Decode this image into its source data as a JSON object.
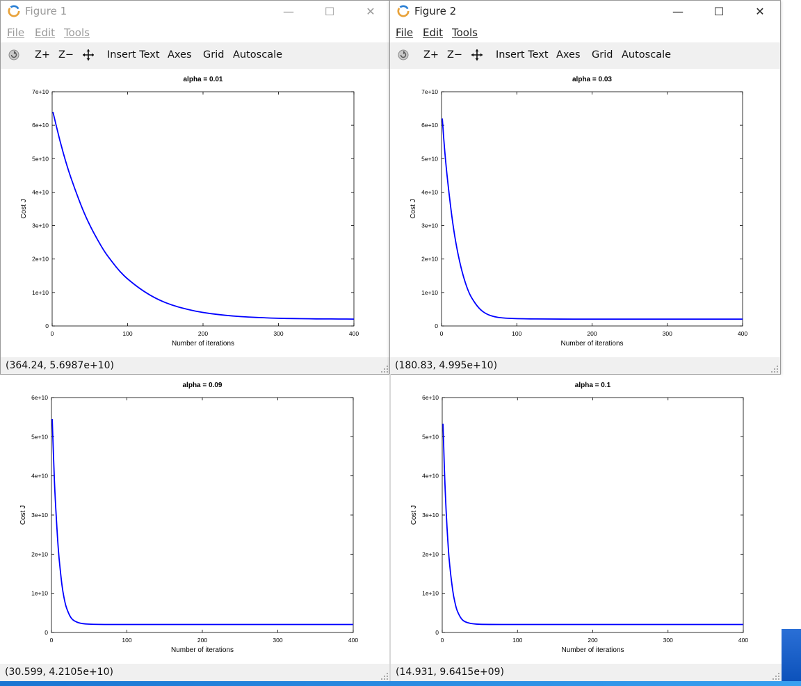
{
  "windows": [
    {
      "title": "Figure 1",
      "title_active": false
    },
    {
      "title": "Figure 2",
      "title_active": true
    }
  ],
  "window_controls": {
    "minimize": "—",
    "maximize": "☐",
    "close": "✕"
  },
  "menu": {
    "file": "File",
    "edit": "Edit",
    "tools": "Tools"
  },
  "toolbar": {
    "zoom_in": "Z+",
    "zoom_out": "Z−",
    "insert_text": "Insert Text",
    "axes": "Axes",
    "grid": "Grid",
    "autoscale": "Autoscale"
  },
  "colors": {
    "line": "#0000ff",
    "toolbar_bg": "#f0f0f0"
  },
  "status": [
    "(364.24, 5.6987e+10)",
    "(180.83, 4.995e+10)",
    "(30.599, 4.2105e+10)",
    "(14.931, 9.6415e+09)"
  ],
  "chart_data": [
    {
      "type": "line",
      "title": "alpha = 0.01",
      "xlabel": "Number of iterations",
      "ylabel": "Cost J",
      "xlim": [
        0,
        400
      ],
      "ylim": [
        0,
        70000000000
      ],
      "x_ticks": [
        0,
        100,
        200,
        300,
        400
      ],
      "y_ticks": [
        0,
        10000000000,
        20000000000,
        30000000000,
        40000000000,
        50000000000,
        60000000000,
        70000000000
      ],
      "y_tick_labels": [
        "0",
        "1e+10",
        "2e+10",
        "3e+10",
        "4e+10",
        "5e+10",
        "6e+10",
        "7e+10"
      ],
      "series": [
        {
          "x": [
            1,
            10,
            20,
            30,
            40,
            50,
            60,
            70,
            80,
            90,
            100,
            120,
            140,
            160,
            180,
            200,
            220,
            240,
            260,
            280,
            300,
            320,
            340,
            360,
            380,
            400
          ],
          "y": [
            64000000000.0,
            55500000000.0,
            47500000000.0,
            41000000000.0,
            35000000000.0,
            30000000000.0,
            25800000000.0,
            22000000000.0,
            19000000000.0,
            16200000000.0,
            14000000000.0,
            10500000000.0,
            7900000000.0,
            6100000000.0,
            4900000000.0,
            4000000000.0,
            3400000000.0,
            2950000000.0,
            2650000000.0,
            2450000000.0,
            2300000000.0,
            2200000000.0,
            2150000000.0,
            2100000000.0,
            2080000000.0,
            2060000000.0
          ]
        }
      ]
    },
    {
      "type": "line",
      "title": "alpha = 0.03",
      "xlabel": "Number of iterations",
      "ylabel": "Cost J",
      "xlim": [
        0,
        400
      ],
      "ylim": [
        0,
        70000000000
      ],
      "x_ticks": [
        0,
        100,
        200,
        300,
        400
      ],
      "y_ticks": [
        0,
        10000000000,
        20000000000,
        30000000000,
        40000000000,
        50000000000,
        60000000000,
        70000000000
      ],
      "y_tick_labels": [
        "0",
        "1e+10",
        "2e+10",
        "3e+10",
        "4e+10",
        "5e+10",
        "6e+10",
        "7e+10"
      ],
      "series": [
        {
          "x": [
            1,
            5,
            10,
            15,
            20,
            25,
            30,
            35,
            40,
            50,
            60,
            70,
            80,
            100,
            150,
            200,
            300,
            400
          ],
          "y": [
            62000000000.0,
            50000000000.0,
            39500000000.0,
            30500000000.0,
            23500000000.0,
            18200000000.0,
            14000000000.0,
            10700000000.0,
            8300000000.0,
            5100000000.0,
            3500000000.0,
            2750000000.0,
            2400000000.0,
            2150000000.0,
            2050000000.0,
            2040000000.0,
            2040000000.0,
            2040000000.0
          ]
        }
      ]
    },
    {
      "type": "line",
      "title": "alpha = 0.09",
      "xlabel": "Number of iterations",
      "ylabel": "Cost J",
      "xlim": [
        0,
        400
      ],
      "ylim": [
        0,
        60000000000
      ],
      "x_ticks": [
        0,
        100,
        200,
        300,
        400
      ],
      "y_ticks": [
        0,
        10000000000,
        20000000000,
        30000000000,
        40000000000,
        50000000000,
        60000000000
      ],
      "y_tick_labels": [
        "0",
        "1e+10",
        "2e+10",
        "3e+10",
        "4e+10",
        "5e+10",
        "6e+10"
      ],
      "series": [
        {
          "x": [
            1,
            3,
            5,
            8,
            10,
            13,
            15,
            18,
            20,
            25,
            30,
            40,
            60,
            100,
            200,
            300,
            400
          ],
          "y": [
            54500000000.0,
            43000000000.0,
            34000000000.0,
            24000000000.0,
            19000000000.0,
            13500000000.0,
            10500000000.0,
            7600000000.0,
            6200000000.0,
            3900000000.0,
            2900000000.0,
            2200000000.0,
            2050000000.0,
            2040000000.0,
            2040000000.0,
            2040000000.0,
            2040000000.0
          ]
        }
      ]
    },
    {
      "type": "line",
      "title": "alpha = 0.1",
      "xlabel": "Number of iterations",
      "ylabel": "Cost J",
      "xlim": [
        0,
        400
      ],
      "ylim": [
        0,
        60000000000
      ],
      "x_ticks": [
        0,
        100,
        200,
        300,
        400
      ],
      "y_ticks": [
        0,
        10000000000,
        20000000000,
        30000000000,
        40000000000,
        50000000000,
        60000000000
      ],
      "y_tick_labels": [
        "0",
        "1e+10",
        "2e+10",
        "3e+10",
        "4e+10",
        "5e+10",
        "6e+10"
      ],
      "series": [
        {
          "x": [
            1,
            3,
            5,
            8,
            10,
            13,
            15,
            18,
            20,
            25,
            30,
            40,
            60,
            100,
            200,
            300,
            400
          ],
          "y": [
            53300000000.0,
            41000000000.0,
            31500000000.0,
            21500000000.0,
            17000000000.0,
            12000000000.0,
            9300000000.0,
            6700000000.0,
            5400000000.0,
            3500000000.0,
            2700000000.0,
            2150000000.0,
            2050000000.0,
            2040000000.0,
            2040000000.0,
            2040000000.0,
            2040000000.0
          ]
        }
      ]
    }
  ]
}
